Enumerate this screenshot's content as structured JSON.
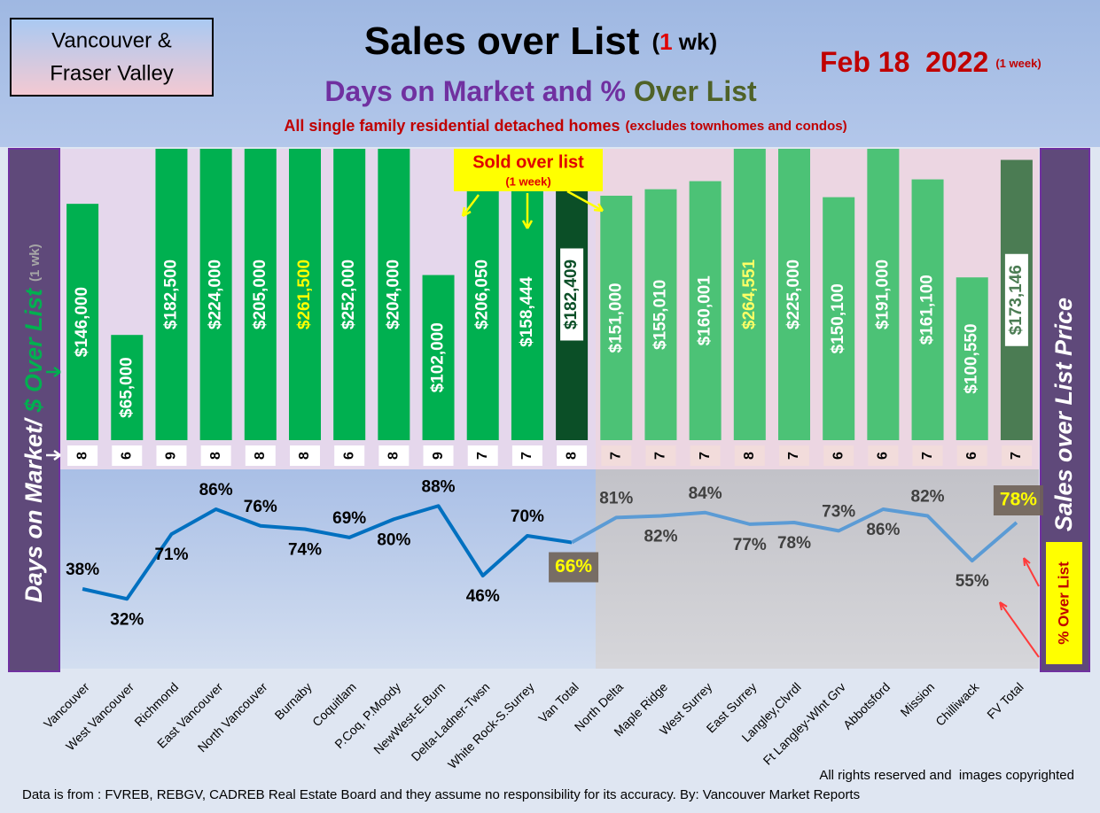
{
  "chart_data": {
    "type": "bar",
    "region": [
      "Vancouver &",
      "Fraser Valley"
    ],
    "title": "Sales over List",
    "title_note": [
      "(",
      "1",
      " wk)"
    ],
    "subtitle": [
      "Days on Market and %",
      "Over List"
    ],
    "note": [
      "All single family residential detached homes",
      "(excludes townhomes and condos)"
    ],
    "date": "Feb 18  2022",
    "date_note": "(1 week)",
    "y_label": [
      "Days on Market/",
      "$ Over List",
      "(1 wk)"
    ],
    "y2_label": "Sales over List Price",
    "sold_note": [
      "Sold over list",
      "(1 week)"
    ],
    "pct_note": "% Over List",
    "footer": [
      "All rights reserved and  images copyrighted",
      "Data is from : FVREB, REBGV, CADREB Real Estate Board and they assume no responsibility for its accuracy. By: Vancouver Market Reports"
    ],
    "categories": [
      "Vancouver",
      "West Vancouver",
      "Richmond",
      "East Vancouver",
      "North Vancouver",
      "Burnaby",
      "Coquitlam",
      "P.Coq, P.Moody",
      "NewWest-E.Burn",
      "Delta-Ladner-Twsn",
      "White Rock-S.Surrey",
      "Van Total",
      "North Delta",
      "Maple Ridge",
      "West Surrey",
      "East Surrey",
      "Langley,Clvrdl",
      "Ft Langley-Wlnt Grv",
      "Abbotsford",
      "Mission",
      "Chilliwack",
      "FV Total"
    ],
    "ylim": [
      0,
      180000
    ],
    "y2lim": [
      -10,
      110
    ],
    "sales": {
      "values": [
        146000,
        65000,
        182500,
        224000,
        205000,
        261500,
        252000,
        204000,
        102000,
        206050,
        158444,
        182409,
        151000,
        155010,
        160001,
        264551,
        225000,
        150100,
        191000,
        161100,
        100550,
        173146
      ],
      "value_labels": [
        "$146,000",
        "$65,000",
        "$182,500",
        "$224,000",
        "$205,000",
        "$261,500",
        "$252,000",
        "$204,000",
        "$102,000",
        "$206,050",
        "$158,444",
        "$182,409",
        "$151,000",
        "$155,010",
        "$160,001",
        "$264,551",
        "$225,000",
        "$150,100",
        "$191,000",
        "$161,100",
        "$100,550",
        "$173,146"
      ],
      "colors": [
        "#00b050",
        "#00b050",
        "#00b050",
        "#00b050",
        "#00b050",
        "#00b050",
        "#00b050",
        "#00b050",
        "#00b050",
        "#00b050",
        "#00b050",
        "#0b4f27",
        "#4cc276",
        "#4cc276",
        "#4cc276",
        "#4cc276",
        "#4cc276",
        "#4cc276",
        "#4cc276",
        "#4cc276",
        "#4cc276",
        "#4b7c53"
      ],
      "label_colors": [
        "#ffffff",
        "#ffffff",
        "#ffffff",
        "#ffffff",
        "#ffffff",
        "#ffff00",
        "#ffffff",
        "#ffffff",
        "#ffffff",
        "#ffffff",
        "#ffffff",
        "#0b4f27",
        "#ffffff",
        "#ffffff",
        "#ffffff",
        "#ffff66",
        "#ffffff",
        "#ffffff",
        "#ffffff",
        "#ffffff",
        "#ffffff",
        "#4b7c53"
      ]
    },
    "days": {
      "values": [
        8,
        6,
        9,
        8,
        8,
        8,
        6,
        8,
        9,
        7,
        7,
        8,
        7,
        7,
        7,
        8,
        7,
        6,
        6,
        7,
        6,
        7
      ]
    },
    "pct": {
      "type": "line",
      "axis": "y2",
      "values": [
        38,
        32,
        71,
        86,
        76,
        74,
        69,
        80,
        88,
        46,
        70,
        66,
        81,
        82,
        84,
        77,
        78,
        73,
        86,
        82,
        55,
        78
      ],
      "value_labels": [
        "38%",
        "32%",
        "71%",
        "86%",
        "76%",
        "74%",
        "69%",
        "80%",
        "88%",
        "46%",
        "70%",
        "66%",
        "81%",
        "82%",
        "84%",
        "77%",
        "78%",
        "73%",
        "86%",
        "82%",
        "55%",
        "78%"
      ],
      "colors": [
        "#0070c0",
        "#5b9bd5"
      ]
    }
  }
}
